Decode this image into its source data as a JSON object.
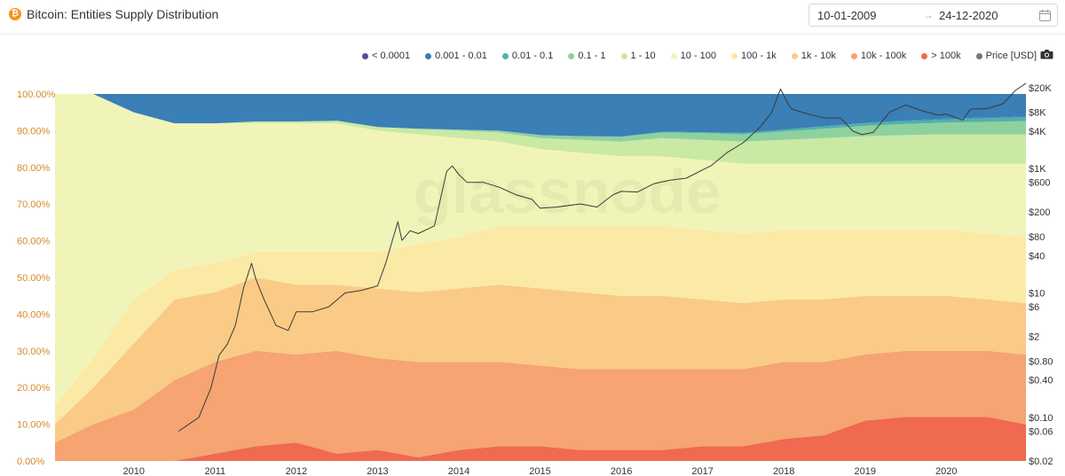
{
  "header": {
    "title": "Bitcoin: Entities Supply Distribution",
    "btc_symbol": "₿",
    "date_start": "10-01-2009",
    "date_arrow": "→",
    "date_end": "24-12-2020"
  },
  "watermark": "glassnode",
  "colors": {
    "left_axis": "#d48a2a",
    "right_axis": "#333333",
    "price_line": "#3a3a3a"
  },
  "chart_data": {
    "type": "area",
    "stacked": true,
    "x_ticks": [
      "2010",
      "2011",
      "2012",
      "2013",
      "2014",
      "2015",
      "2016",
      "2017",
      "2018",
      "2019",
      "2020"
    ],
    "y_left_ticks": [
      "0.00%",
      "10.00%",
      "20.00%",
      "30.00%",
      "40.00%",
      "50.00%",
      "60.00%",
      "70.00%",
      "80.00%",
      "90.00%",
      "100.00%"
    ],
    "y_left_range": [
      0,
      100
    ],
    "y_right_ticks": [
      "$0.02",
      "$0.06",
      "$0.10",
      "$0.40",
      "$0.80",
      "$2",
      "$6",
      "$10",
      "$40",
      "$80",
      "$200",
      "$600",
      "$1K",
      "$4K",
      "$8K",
      "$20K"
    ],
    "y_right_tick_values": [
      0.02,
      0.06,
      0.1,
      0.4,
      0.8,
      2,
      6,
      10,
      40,
      80,
      200,
      600,
      1000,
      4000,
      8000,
      20000
    ],
    "y_right_scale": "log",
    "x_range": [
      2009.03,
      2020.98
    ],
    "legend": [
      {
        "label": "< 0.0001",
        "color": "#5b4a9a"
      },
      {
        "label": "0.001 - 0.01",
        "color": "#3a7fb5"
      },
      {
        "label": "0.01 - 0.1",
        "color": "#4db3a8"
      },
      {
        "label": "0.1 - 1",
        "color": "#8fd19e"
      },
      {
        "label": "1 - 10",
        "color": "#c9e9a4"
      },
      {
        "label": "10 - 100",
        "color": "#f1f4b8"
      },
      {
        "label": "100 - 1k",
        "color": "#fbe9a6"
      },
      {
        "label": "1k - 10k",
        "color": "#f9cb86"
      },
      {
        "label": "10k - 100k",
        "color": "#f5a472"
      },
      {
        "label": "> 100k",
        "color": "#ef6a4f"
      },
      {
        "label": "Price [USD]",
        "color": "#777777"
      }
    ],
    "x": [
      2009.03,
      2009.5,
      2010.0,
      2010.5,
      2011.0,
      2011.5,
      2012.0,
      2012.5,
      2013.0,
      2013.5,
      2014.0,
      2014.5,
      2015.0,
      2015.5,
      2016.0,
      2016.5,
      2017.0,
      2017.5,
      2018.0,
      2018.5,
      2019.0,
      2019.5,
      2020.0,
      2020.5,
      2020.98
    ],
    "series": [
      {
        "name": "> 100k",
        "values": [
          0,
          0,
          0,
          0,
          2,
          4,
          5,
          2,
          3,
          1,
          3,
          4,
          4,
          3,
          3,
          3,
          4,
          4,
          6,
          7,
          11,
          12,
          12,
          12,
          10
        ]
      },
      {
        "name": "10k - 100k",
        "values": [
          5,
          10,
          14,
          22,
          25,
          26,
          24,
          28,
          25,
          26,
          24,
          23,
          22,
          22,
          22,
          22,
          21,
          21,
          21,
          20,
          18,
          18,
          18,
          18,
          19
        ]
      },
      {
        "name": "1k - 10k",
        "values": [
          5,
          10,
          18,
          22,
          19,
          20,
          19,
          18,
          19,
          19,
          20,
          21,
          21,
          21,
          20,
          20,
          19,
          18,
          17,
          17,
          16,
          15,
          15,
          14,
          14
        ]
      },
      {
        "name": "100 - 1k",
        "values": [
          5,
          8,
          12,
          8,
          8,
          7,
          9,
          9,
          10,
          13,
          14,
          16,
          17,
          18,
          19,
          19,
          19,
          19,
          19,
          19,
          18,
          18,
          18,
          18,
          18
        ]
      },
      {
        "name": "10 - 100",
        "values": [
          85,
          72,
          51,
          40,
          38,
          35,
          35,
          35,
          33,
          30,
          27,
          23,
          21,
          20,
          19,
          19,
          19,
          19,
          18,
          18,
          18,
          18,
          18,
          19,
          20
        ]
      },
      {
        "name": "1 - 10",
        "values": [
          0,
          0,
          0,
          0,
          0,
          0.5,
          0.5,
          0.7,
          1,
          1.5,
          2,
          2.5,
          3,
          3.5,
          4,
          5,
          5.5,
          6,
          6.5,
          7,
          7.5,
          7.8,
          8,
          8,
          8
        ]
      },
      {
        "name": "0.1 - 1",
        "values": [
          0,
          0,
          0,
          0,
          0,
          0,
          0,
          0,
          0,
          0,
          0.3,
          0.5,
          0.8,
          1,
          1.3,
          1.5,
          1.8,
          2,
          2.3,
          2.5,
          2.8,
          3,
          3.2,
          3.4,
          3.6
        ]
      },
      {
        "name": "0.01 - 0.1",
        "values": [
          0,
          0,
          0,
          0,
          0,
          0,
          0,
          0,
          0,
          0,
          0,
          0,
          0,
          0,
          0.1,
          0.2,
          0.3,
          0.4,
          0.5,
          0.6,
          0.7,
          0.8,
          0.9,
          1.0,
          1.1
        ]
      },
      {
        "name": "0.001 - 0.01",
        "values": [
          0,
          0,
          0,
          0,
          0,
          0,
          0,
          0,
          0,
          0,
          0,
          0,
          0,
          0,
          0,
          0,
          0,
          0,
          0,
          0.1,
          0.1,
          0.2,
          0.2,
          0.2,
          0.3
        ]
      },
      {
        "name": "< 0.0001",
        "values": [
          0,
          0,
          0,
          0,
          0,
          0,
          0,
          0,
          0,
          0,
          0,
          0,
          0,
          0,
          0,
          0,
          0,
          0,
          0,
          0,
          0,
          0,
          0,
          0,
          0
        ]
      }
    ],
    "price": {
      "name": "Price [USD]",
      "x": [
        2010.55,
        2010.8,
        2010.95,
        2011.05,
        2011.15,
        2011.25,
        2011.35,
        2011.45,
        2011.5,
        2011.6,
        2011.75,
        2011.9,
        2012.0,
        2012.2,
        2012.4,
        2012.6,
        2012.8,
        2013.0,
        2013.1,
        2013.25,
        2013.3,
        2013.4,
        2013.5,
        2013.7,
        2013.85,
        2013.92,
        2014.0,
        2014.1,
        2014.3,
        2014.5,
        2014.7,
        2014.9,
        2015.0,
        2015.2,
        2015.5,
        2015.7,
        2015.9,
        2016.0,
        2016.2,
        2016.4,
        2016.6,
        2016.8,
        2017.0,
        2017.1,
        2017.3,
        2017.5,
        2017.7,
        2017.85,
        2017.96,
        2018.05,
        2018.1,
        2018.3,
        2018.5,
        2018.7,
        2018.85,
        2018.96,
        2019.1,
        2019.3,
        2019.5,
        2019.7,
        2019.9,
        2020.0,
        2020.2,
        2020.3,
        2020.5,
        2020.7,
        2020.85,
        2020.98
      ],
      "values": [
        0.06,
        0.1,
        0.3,
        1,
        1.5,
        3,
        12,
        30,
        17,
        8,
        3,
        2.5,
        5,
        5,
        6,
        10,
        11,
        13,
        30,
        140,
        70,
        100,
        90,
        120,
        900,
        1100,
        800,
        600,
        600,
        500,
        380,
        320,
        230,
        240,
        270,
        240,
        380,
        430,
        420,
        570,
        650,
        700,
        950,
        1100,
        1800,
        2600,
        4500,
        8000,
        19000,
        11000,
        9000,
        7500,
        6500,
        6500,
        4000,
        3500,
        3800,
        8000,
        10500,
        8500,
        7200,
        7500,
        6000,
        9000,
        9200,
        11000,
        18000,
        23500
      ]
    }
  }
}
